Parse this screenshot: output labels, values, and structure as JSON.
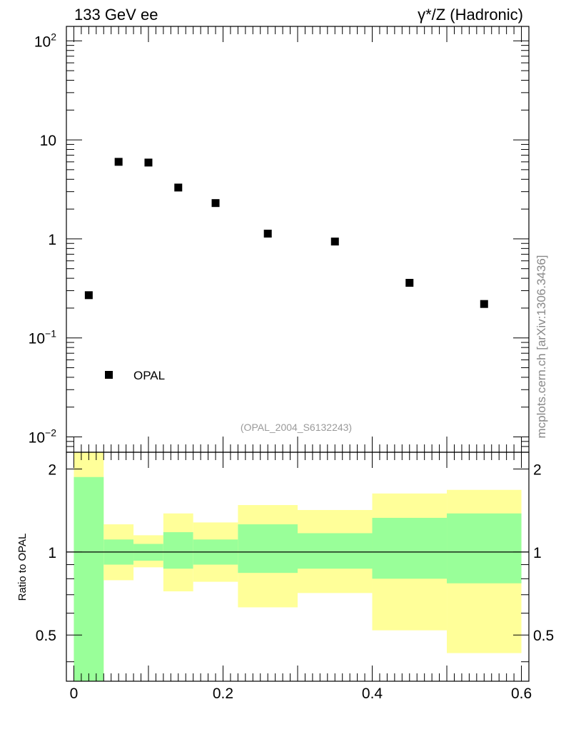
{
  "header": {
    "left_label": "133 GeV ee",
    "right_label": "γ*/Z (Hadronic)"
  },
  "reference_label": "(OPAL_2004_S6132243)",
  "side_label": "mcplots.cern.ch [arXiv:1306.3436]",
  "legend": {
    "label": "OPAL"
  },
  "ratio_ylabel": "Ratio to OPAL",
  "colors": {
    "inner_band": "#99ff99",
    "outer_band": "#ffff99",
    "marker": "#000000",
    "reference_text": "#9a9a9a",
    "side_text": "#888888"
  },
  "chart_data": [
    {
      "type": "scatter",
      "yscale": "log",
      "xlim": [
        -0.01,
        0.61
      ],
      "ylim": [
        0.007,
        140
      ],
      "ytick_labels": [
        {
          "value": 100,
          "base": "10",
          "exp": "2"
        },
        {
          "value": 10,
          "base": "10",
          "exp": ""
        },
        {
          "value": 1,
          "base": "1",
          "exp": ""
        },
        {
          "value": 0.1,
          "base": "10",
          "exp": "−1"
        },
        {
          "value": 0.01,
          "base": "10",
          "exp": "−2"
        }
      ],
      "series": [
        {
          "name": "OPAL",
          "x": [
            0.02,
            0.06,
            0.1,
            0.14,
            0.19,
            0.26,
            0.35,
            0.45,
            0.55
          ],
          "y": [
            0.27,
            6.0,
            5.9,
            3.3,
            2.3,
            1.13,
            0.94,
            0.36,
            0.22
          ]
        }
      ]
    },
    {
      "type": "area",
      "ylabel": "Ratio to OPAL",
      "xlim": [
        -0.01,
        0.61
      ],
      "ylim": [
        0.34,
        2.3
      ],
      "xtick_labels": [
        "0",
        "0.2",
        "0.4",
        "0.6"
      ],
      "ytick_labels": [
        "0.5",
        "1",
        "2"
      ],
      "bins": [
        {
          "lo": 0.0,
          "hi": 0.04,
          "inner": [
            0.34,
            1.87
          ],
          "outer": [
            0.34,
            2.3
          ]
        },
        {
          "lo": 0.04,
          "hi": 0.08,
          "inner": [
            0.9,
            1.11
          ],
          "outer": [
            0.79,
            1.26
          ]
        },
        {
          "lo": 0.08,
          "hi": 0.12,
          "inner": [
            0.93,
            1.07
          ],
          "outer": [
            0.88,
            1.15
          ]
        },
        {
          "lo": 0.12,
          "hi": 0.16,
          "inner": [
            0.87,
            1.18
          ],
          "outer": [
            0.72,
            1.38
          ]
        },
        {
          "lo": 0.16,
          "hi": 0.22,
          "inner": [
            0.9,
            1.11
          ],
          "outer": [
            0.78,
            1.28
          ]
        },
        {
          "lo": 0.22,
          "hi": 0.3,
          "inner": [
            0.84,
            1.26
          ],
          "outer": [
            0.63,
            1.48
          ]
        },
        {
          "lo": 0.3,
          "hi": 0.4,
          "inner": [
            0.87,
            1.17
          ],
          "outer": [
            0.71,
            1.42
          ]
        },
        {
          "lo": 0.4,
          "hi": 0.5,
          "inner": [
            0.8,
            1.33
          ],
          "outer": [
            0.52,
            1.63
          ]
        },
        {
          "lo": 0.5,
          "hi": 0.6,
          "inner": [
            0.77,
            1.38
          ],
          "outer": [
            0.43,
            1.68
          ]
        }
      ],
      "reference_line": 1
    }
  ]
}
